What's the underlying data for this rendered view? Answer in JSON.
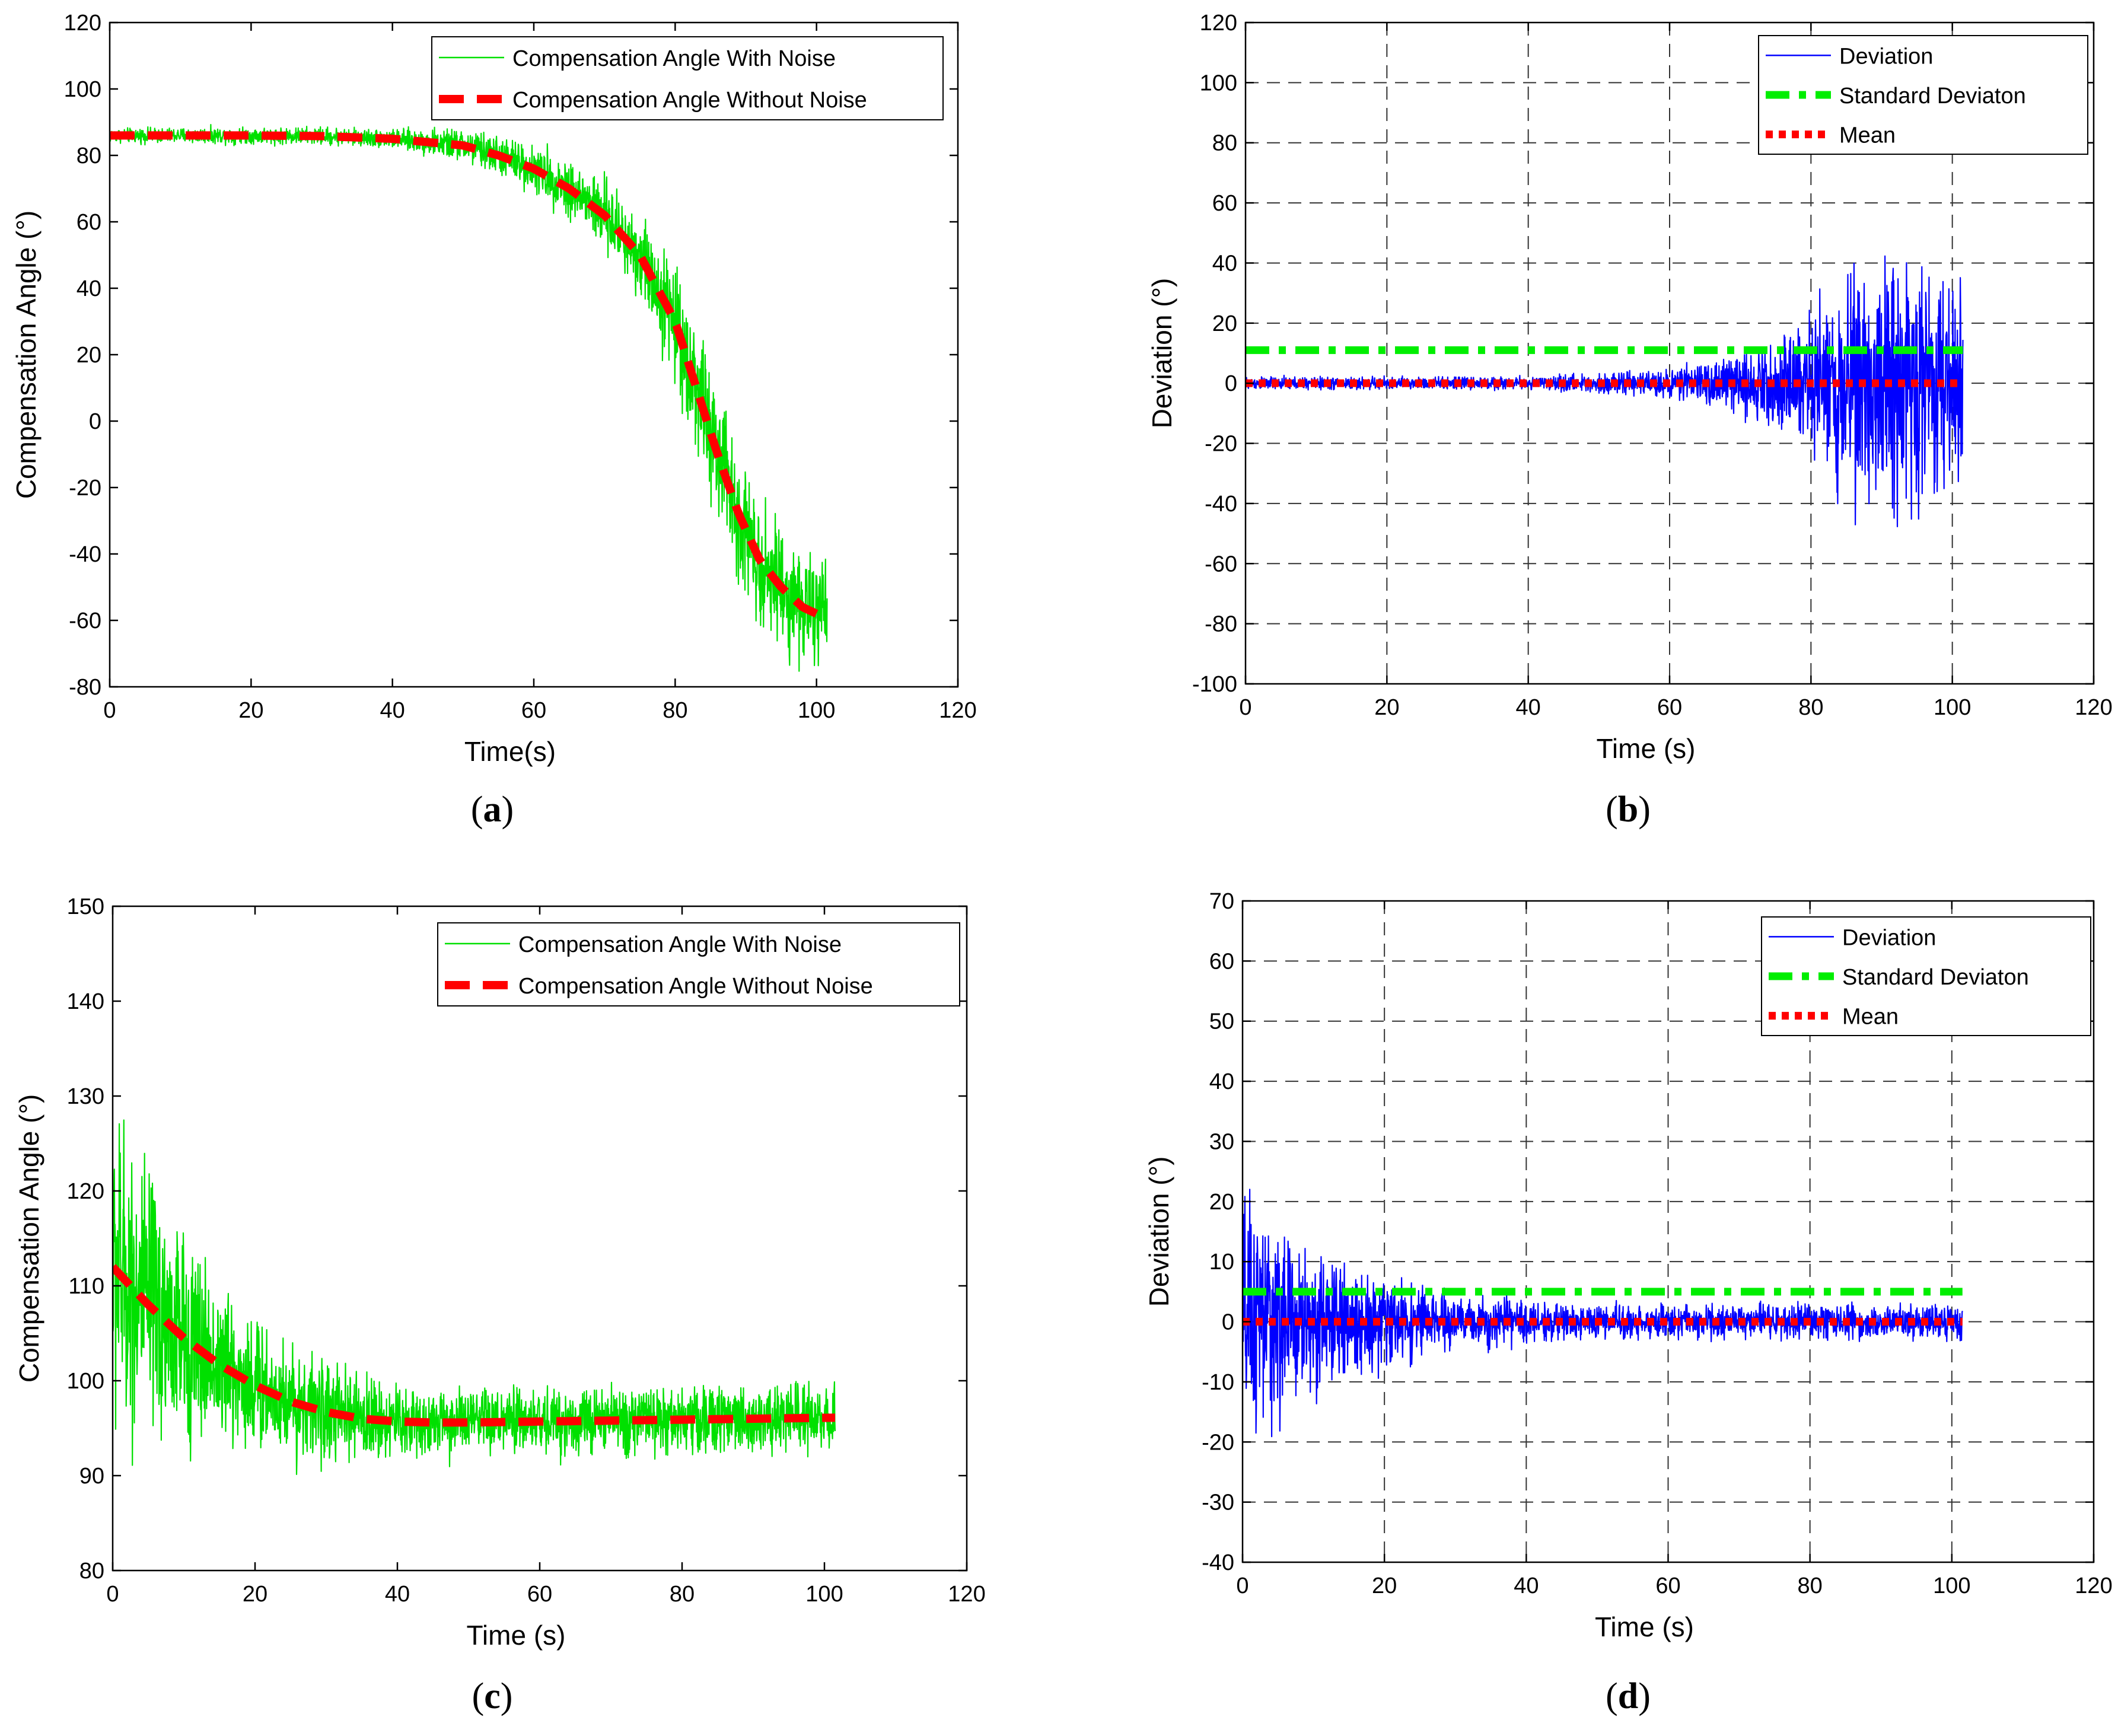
{
  "chart_data": [
    {
      "id": "a",
      "type": "line",
      "caption_open": "(",
      "caption_letter": "a",
      "caption_close": ")",
      "xlabel": "Time(s)",
      "ylabel": "Compensation Angle (°)",
      "xlim": [
        0,
        120
      ],
      "ylim": [
        -80,
        120
      ],
      "xticks": [
        0,
        20,
        40,
        60,
        80,
        100,
        120
      ],
      "yticks": [
        -80,
        -60,
        -40,
        -20,
        0,
        20,
        40,
        60,
        80,
        100,
        120
      ],
      "grid": false,
      "legend_position": "top-right",
      "series": [
        {
          "name": "Compensation Angle With Noise",
          "color": "#00e000",
          "style": "solid-thin",
          "kind": "noise"
        },
        {
          "name": "Compensation Angle Without Noise",
          "color": "#ff0000",
          "style": "dashed-thick",
          "kind": "smooth"
        }
      ],
      "smooth_x": [
        0,
        10,
        20,
        30,
        40,
        50,
        55,
        60,
        65,
        70,
        75,
        80,
        83,
        86,
        89,
        92,
        95,
        98,
        101
      ],
      "smooth_y": [
        86,
        86,
        86,
        85.8,
        85,
        83,
        80,
        76,
        70,
        62,
        50,
        30,
        10,
        -10,
        -28,
        -42,
        -50,
        -56,
        -59
      ],
      "noise_amplitude": [
        [
          0,
          3
        ],
        [
          40,
          4
        ],
        [
          60,
          10
        ],
        [
          75,
          18
        ],
        [
          85,
          30
        ],
        [
          101,
          22
        ]
      ],
      "x_end": 101.5
    },
    {
      "id": "b",
      "type": "line",
      "caption_open": "(",
      "caption_letter": "b",
      "caption_close": ")",
      "xlabel": "Time (s)",
      "ylabel": "Deviation (°)",
      "xlim": [
        0,
        120
      ],
      "ylim": [
        -100,
        120
      ],
      "xticks": [
        0,
        20,
        40,
        60,
        80,
        100,
        120
      ],
      "yticks": [
        -100,
        -80,
        -60,
        -40,
        -20,
        0,
        20,
        40,
        60,
        80,
        100,
        120
      ],
      "grid": true,
      "legend_position": "top-right",
      "series": [
        {
          "name": "Deviation",
          "color": "#0000ff",
          "style": "solid-thin",
          "kind": "noise"
        },
        {
          "name": "Standard Deviaton",
          "color": "#00ee00",
          "style": "dashdot-thick",
          "kind": "hline",
          "value": 11
        },
        {
          "name": "Mean",
          "color": "#ff0000",
          "style": "dotted-thick",
          "kind": "hline",
          "value": 0
        }
      ],
      "noise_amplitude": [
        [
          0,
          3
        ],
        [
          40,
          3
        ],
        [
          60,
          6
        ],
        [
          75,
          18
        ],
        [
          85,
          50
        ],
        [
          92,
          60
        ],
        [
          101,
          45
        ]
      ],
      "x_end": 101.5
    },
    {
      "id": "c",
      "type": "line",
      "caption_open": "(",
      "caption_letter": "c",
      "caption_close": ")",
      "xlabel": "Time (s)",
      "ylabel": "Compensation Angle (°)",
      "xlim": [
        0,
        120
      ],
      "ylim": [
        80,
        150
      ],
      "xticks": [
        0,
        20,
        40,
        60,
        80,
        100,
        120
      ],
      "yticks": [
        80,
        90,
        100,
        110,
        120,
        130,
        140,
        150
      ],
      "grid": false,
      "legend_position": "top-right",
      "series": [
        {
          "name": "Compensation Angle With Noise",
          "color": "#00e000",
          "style": "solid-thin",
          "kind": "noise"
        },
        {
          "name": "Compensation Angle Without Noise",
          "color": "#ff0000",
          "style": "dashed-thick",
          "kind": "smooth"
        }
      ],
      "smooth_x": [
        0,
        5,
        10,
        15,
        20,
        25,
        30,
        35,
        40,
        45,
        50,
        60,
        70,
        80,
        90,
        101
      ],
      "smooth_y": [
        112,
        108,
        104.5,
        101.7,
        99.5,
        97.8,
        96.7,
        96,
        95.7,
        95.6,
        95.6,
        95.7,
        95.8,
        95.9,
        96,
        96.1
      ],
      "noise_amplitude": [
        [
          0,
          24
        ],
        [
          5,
          20
        ],
        [
          15,
          12
        ],
        [
          30,
          7
        ],
        [
          45,
          5
        ],
        [
          101,
          5
        ]
      ],
      "x_end": 101.5
    },
    {
      "id": "d",
      "type": "line",
      "caption_open": "(",
      "caption_letter": "d",
      "caption_close": ")",
      "xlabel": "Time (s)",
      "ylabel": "Deviation (°)",
      "xlim": [
        0,
        120
      ],
      "ylim": [
        -40,
        70
      ],
      "xticks": [
        0,
        20,
        40,
        60,
        80,
        100,
        120
      ],
      "yticks": [
        -40,
        -30,
        -20,
        -10,
        0,
        10,
        20,
        30,
        40,
        50,
        60,
        70
      ],
      "grid": true,
      "legend_position": "top-right",
      "series": [
        {
          "name": "Deviation",
          "color": "#0000ff",
          "style": "solid-thin",
          "kind": "noise"
        },
        {
          "name": "Standard Deviaton",
          "color": "#00ee00",
          "style": "dashdot-thick",
          "kind": "hline",
          "value": 5
        },
        {
          "name": "Mean",
          "color": "#ff0000",
          "style": "dotted-thick",
          "kind": "hline",
          "value": 0
        }
      ],
      "noise_amplitude": [
        [
          0,
          30
        ],
        [
          5,
          22
        ],
        [
          15,
          12
        ],
        [
          30,
          6
        ],
        [
          45,
          4
        ],
        [
          101,
          4
        ]
      ],
      "x_end": 101.5
    }
  ]
}
